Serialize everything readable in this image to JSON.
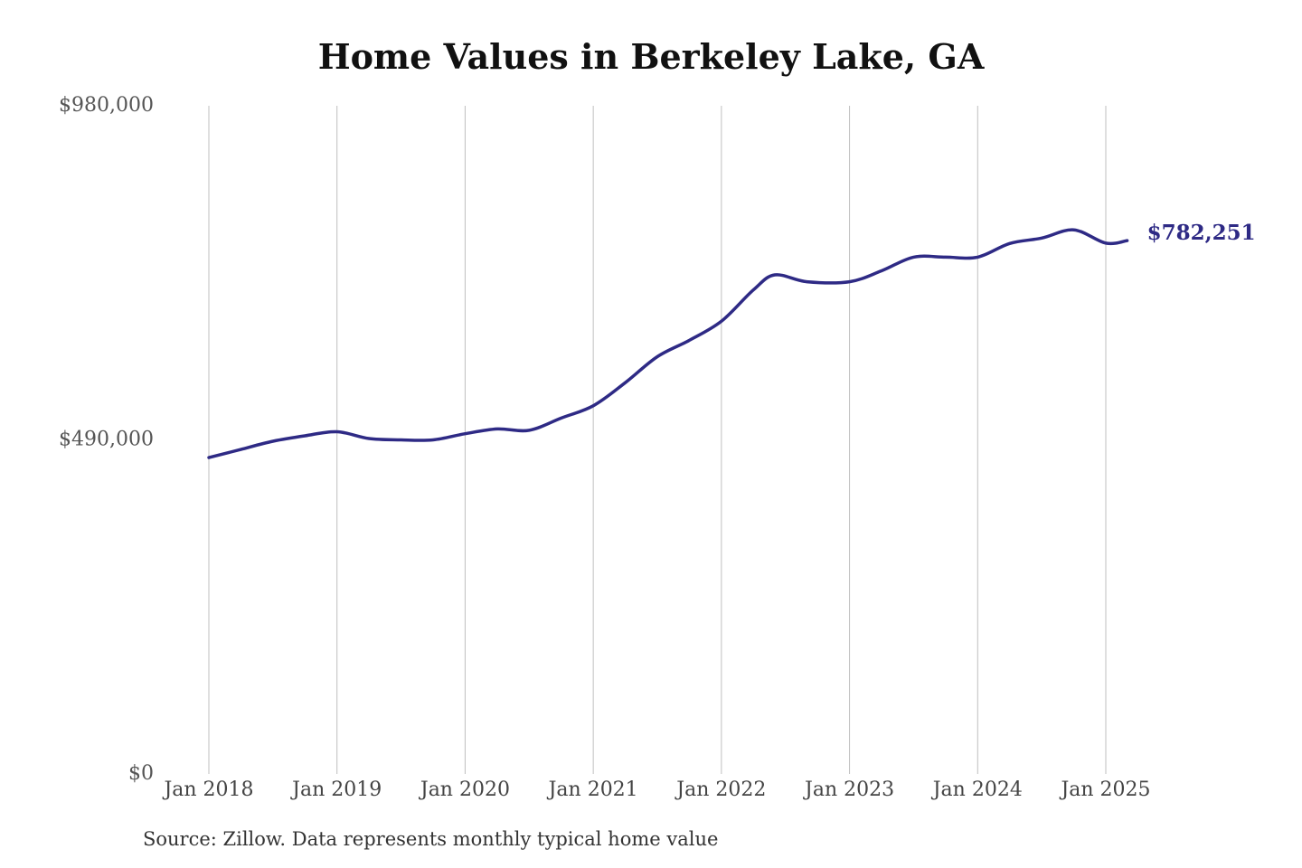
{
  "chart_data": {
    "type": "line",
    "title": "Home Values in Berkeley Lake, GA",
    "source": "Source: Zillow. Data represents monthly typical home value",
    "xlabel": "",
    "ylabel": "",
    "ylim": [
      0,
      980000
    ],
    "y_ticks": [
      0,
      490000,
      980000
    ],
    "y_tick_labels": [
      "$0",
      "$490,000",
      "$980,000"
    ],
    "x_ticks": [
      "2018-01",
      "2019-01",
      "2020-01",
      "2021-01",
      "2022-01",
      "2023-01",
      "2024-01",
      "2025-01"
    ],
    "x_tick_labels": [
      "Jan 2018",
      "Jan 2019",
      "Jan 2020",
      "Jan 2021",
      "Jan 2022",
      "Jan 2023",
      "Jan 2024",
      "Jan 2025"
    ],
    "grid": "vertical",
    "line_color": "#2e2a85",
    "end_label": "$782,251",
    "series": [
      {
        "x": [
          "2018-01",
          "2018-04",
          "2018-07",
          "2018-10",
          "2019-01",
          "2019-04",
          "2019-07",
          "2019-10",
          "2020-01",
          "2020-04",
          "2020-07",
          "2020-10",
          "2021-01",
          "2021-04",
          "2021-07",
          "2021-10",
          "2022-01",
          "2022-04",
          "2022-06",
          "2022-09",
          "2023-01",
          "2023-04",
          "2023-07",
          "2023-10",
          "2024-01",
          "2024-04",
          "2024-07",
          "2024-10",
          "2025-01",
          "2025-03"
        ],
        "values": [
          464000,
          476000,
          488000,
          496000,
          502000,
          492000,
          490000,
          490000,
          499000,
          506000,
          504000,
          522000,
          540000,
          574000,
          612000,
          636000,
          664000,
          710000,
          732000,
          722000,
          722000,
          738000,
          758000,
          758000,
          758000,
          778000,
          786000,
          798000,
          778500,
          782251
        ]
      }
    ]
  }
}
